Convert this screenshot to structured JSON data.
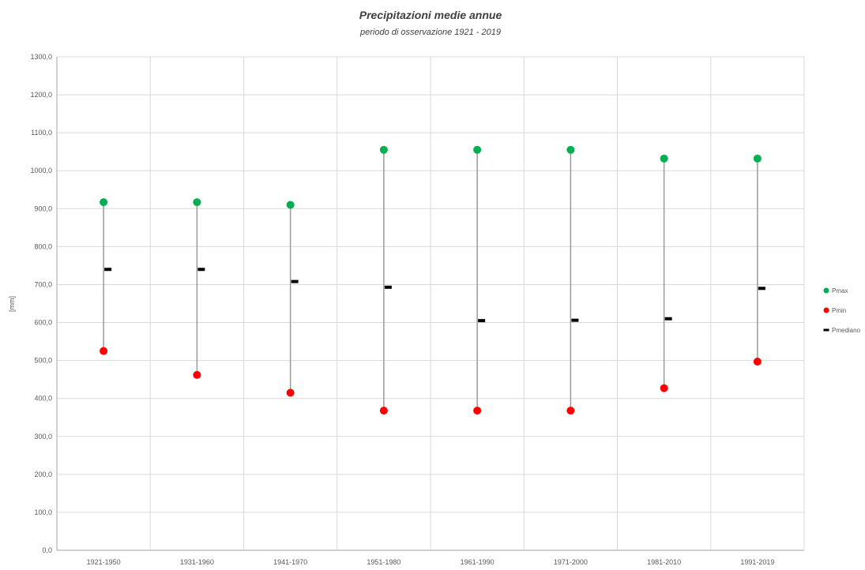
{
  "chart_data": {
    "type": "scatter",
    "title": "Precipitazioni medie annue",
    "subtitle": "periodo di osservazione 1921 - 2019",
    "ylabel": "[mm]",
    "xlabel": "",
    "ylim": [
      0,
      1300
    ],
    "yticks": [
      "0,0",
      "100,0",
      "200,0",
      "300,0",
      "400,0",
      "500,0",
      "600,0",
      "700,0",
      "800,0",
      "900,0",
      "1000,0",
      "1100,0",
      "1200,0",
      "1300,0"
    ],
    "ytick_values": [
      0,
      100,
      200,
      300,
      400,
      500,
      600,
      700,
      800,
      900,
      1000,
      1100,
      1200,
      1300
    ],
    "grid": true,
    "legend_position": "right",
    "categories": [
      "1921-1950",
      "1931-1960",
      "1941-1970",
      "1951-1980",
      "1961-1990",
      "1971-2000",
      "1981-2010",
      "1991-2019"
    ],
    "series": [
      {
        "name": "Pmax",
        "color": "#00b050",
        "marker": "circle",
        "values": [
          917,
          917,
          910,
          1055,
          1055,
          1055,
          1032,
          1032
        ]
      },
      {
        "name": "Pmin",
        "color": "#ff0000",
        "marker": "circle",
        "values": [
          525,
          462,
          415,
          368,
          368,
          368,
          427,
          497
        ]
      },
      {
        "name": "Pmediano",
        "color": "#000000",
        "marker": "dash",
        "values": [
          740,
          740,
          708,
          693,
          605,
          606,
          610,
          690
        ]
      }
    ]
  }
}
